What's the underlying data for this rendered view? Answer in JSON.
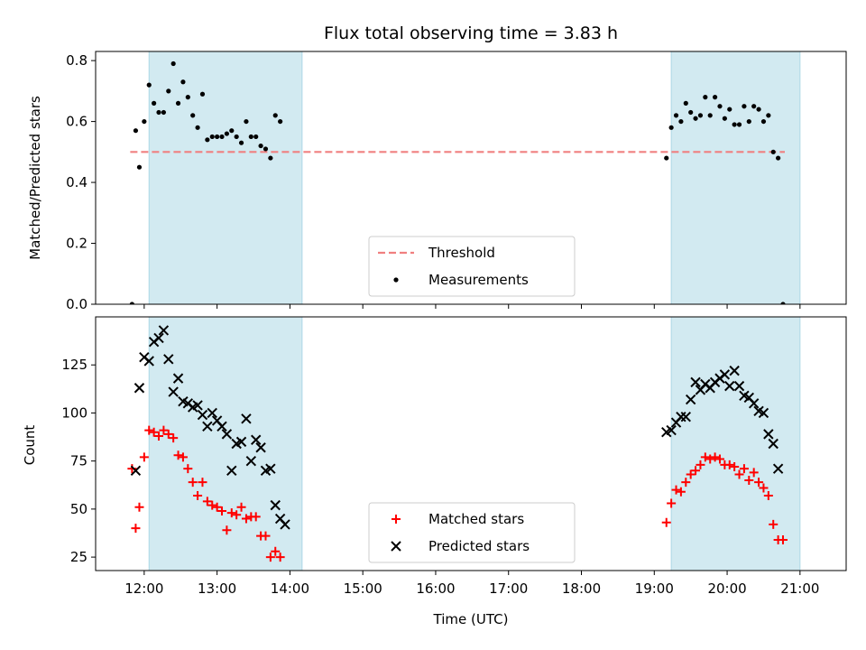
{
  "chart_data": [
    {
      "type": "scatter",
      "title": "Flux total observing time = 3.83 h",
      "ylabel": "Matched/Predicted stars",
      "xlim": [
        "11:20",
        "21:38"
      ],
      "ylim": [
        0,
        0.83
      ],
      "yticks": [
        "0.0",
        "0.2",
        "0.4",
        "0.6",
        "0.8"
      ],
      "ytick_values": [
        0,
        0.2,
        0.4,
        0.6,
        0.8
      ],
      "shaded_intervals": [
        [
          "12:04",
          "14:10"
        ],
        [
          "19:14",
          "21:00"
        ]
      ],
      "shade_color": "#add8e6",
      "threshold": {
        "name": "Threshold",
        "value": 0.5,
        "color": "#f08080",
        "style": "dashed"
      },
      "legend": {
        "location": "lower-center",
        "entries": [
          "Threshold",
          "Measurements"
        ]
      },
      "series": [
        {
          "name": "Measurements",
          "color": "#000000",
          "marker": "dot",
          "points": [
            [
              "11:50",
              0.0
            ],
            [
              "11:53",
              0.57
            ],
            [
              "11:56",
              0.45
            ],
            [
              "12:00",
              0.6
            ],
            [
              "12:04",
              0.72
            ],
            [
              "12:08",
              0.66
            ],
            [
              "12:12",
              0.63
            ],
            [
              "12:16",
              0.63
            ],
            [
              "12:20",
              0.7
            ],
            [
              "12:24",
              0.79
            ],
            [
              "12:28",
              0.66
            ],
            [
              "12:32",
              0.73
            ],
            [
              "12:36",
              0.68
            ],
            [
              "12:40",
              0.62
            ],
            [
              "12:44",
              0.58
            ],
            [
              "12:48",
              0.69
            ],
            [
              "12:52",
              0.54
            ],
            [
              "12:56",
              0.55
            ],
            [
              "13:00",
              0.55
            ],
            [
              "13:04",
              0.55
            ],
            [
              "13:08",
              0.56
            ],
            [
              "13:12",
              0.57
            ],
            [
              "13:16",
              0.55
            ],
            [
              "13:20",
              0.53
            ],
            [
              "13:24",
              0.6
            ],
            [
              "13:28",
              0.55
            ],
            [
              "13:32",
              0.55
            ],
            [
              "13:36",
              0.52
            ],
            [
              "13:40",
              0.51
            ],
            [
              "13:44",
              0.48
            ],
            [
              "13:48",
              0.62
            ],
            [
              "13:52",
              0.6
            ],
            [
              "19:10",
              0.48
            ],
            [
              "19:14",
              0.58
            ],
            [
              "19:18",
              0.62
            ],
            [
              "19:22",
              0.6
            ],
            [
              "19:26",
              0.66
            ],
            [
              "19:30",
              0.63
            ],
            [
              "19:34",
              0.61
            ],
            [
              "19:38",
              0.62
            ],
            [
              "19:42",
              0.68
            ],
            [
              "19:46",
              0.62
            ],
            [
              "19:50",
              0.68
            ],
            [
              "19:54",
              0.65
            ],
            [
              "19:58",
              0.61
            ],
            [
              "20:02",
              0.64
            ],
            [
              "20:06",
              0.59
            ],
            [
              "20:10",
              0.59
            ],
            [
              "20:14",
              0.65
            ],
            [
              "20:18",
              0.6
            ],
            [
              "20:22",
              0.65
            ],
            [
              "20:26",
              0.64
            ],
            [
              "20:30",
              0.6
            ],
            [
              "20:34",
              0.62
            ],
            [
              "20:38",
              0.5
            ],
            [
              "20:42",
              0.48
            ],
            [
              "20:46",
              0.0
            ]
          ]
        }
      ]
    },
    {
      "type": "scatter",
      "xlabel": "Time (UTC)",
      "ylabel": "Count",
      "xlim": [
        "11:20",
        "21:38"
      ],
      "ylim": [
        18,
        150
      ],
      "xticks": [
        "12:00",
        "13:00",
        "14:00",
        "15:00",
        "16:00",
        "17:00",
        "18:00",
        "19:00",
        "20:00",
        "21:00"
      ],
      "yticks": [
        "25",
        "50",
        "75",
        "100",
        "125"
      ],
      "ytick_values": [
        25,
        50,
        75,
        100,
        125
      ],
      "shaded_intervals": [
        [
          "12:04",
          "14:10"
        ],
        [
          "19:14",
          "21:00"
        ]
      ],
      "shade_color": "#add8e6",
      "legend": {
        "location": "lower-center",
        "entries": [
          "Matched stars",
          "Predicted stars"
        ]
      },
      "series": [
        {
          "name": "Matched stars",
          "color": "#ff0000",
          "marker": "plus",
          "points": [
            [
              "11:50",
              71
            ],
            [
              "11:53",
              40
            ],
            [
              "11:56",
              51
            ],
            [
              "12:00",
              77
            ],
            [
              "12:04",
              91
            ],
            [
              "12:08",
              90
            ],
            [
              "12:12",
              88
            ],
            [
              "12:16",
              91
            ],
            [
              "12:20",
              89
            ],
            [
              "12:24",
              87
            ],
            [
              "12:28",
              78
            ],
            [
              "12:32",
              77
            ],
            [
              "12:36",
              71
            ],
            [
              "12:40",
              64
            ],
            [
              "12:44",
              57
            ],
            [
              "12:48",
              64
            ],
            [
              "12:52",
              54
            ],
            [
              "12:56",
              52
            ],
            [
              "13:00",
              51
            ],
            [
              "13:04",
              49
            ],
            [
              "13:08",
              39
            ],
            [
              "13:12",
              48
            ],
            [
              "13:16",
              47
            ],
            [
              "13:20",
              51
            ],
            [
              "13:24",
              45
            ],
            [
              "13:28",
              46
            ],
            [
              "13:32",
              46
            ],
            [
              "13:36",
              36
            ],
            [
              "13:40",
              36
            ],
            [
              "13:44",
              25
            ],
            [
              "13:48",
              28
            ],
            [
              "13:52",
              25
            ],
            [
              "19:10",
              43
            ],
            [
              "19:14",
              53
            ],
            [
              "19:18",
              60
            ],
            [
              "19:22",
              59
            ],
            [
              "19:26",
              64
            ],
            [
              "19:30",
              68
            ],
            [
              "19:34",
              70
            ],
            [
              "19:38",
              73
            ],
            [
              "19:42",
              77
            ],
            [
              "19:46",
              76
            ],
            [
              "19:50",
              77
            ],
            [
              "19:54",
              76
            ],
            [
              "19:58",
              73
            ],
            [
              "20:02",
              73
            ],
            [
              "20:06",
              72
            ],
            [
              "20:10",
              68
            ],
            [
              "20:14",
              71
            ],
            [
              "20:18",
              65
            ],
            [
              "20:22",
              69
            ],
            [
              "20:26",
              64
            ],
            [
              "20:30",
              61
            ],
            [
              "20:34",
              57
            ],
            [
              "20:38",
              42
            ],
            [
              "20:42",
              34
            ],
            [
              "20:46",
              34
            ]
          ]
        },
        {
          "name": "Predicted stars",
          "color": "#000000",
          "marker": "x",
          "points": [
            [
              "11:53",
              70
            ],
            [
              "11:56",
              113
            ],
            [
              "12:00",
              129
            ],
            [
              "12:04",
              127
            ],
            [
              "12:08",
              137
            ],
            [
              "12:12",
              139
            ],
            [
              "12:16",
              143
            ],
            [
              "12:20",
              128
            ],
            [
              "12:24",
              111
            ],
            [
              "12:28",
              118
            ],
            [
              "12:32",
              106
            ],
            [
              "12:36",
              105
            ],
            [
              "12:40",
              103
            ],
            [
              "12:44",
              104
            ],
            [
              "12:48",
              99
            ],
            [
              "12:52",
              93
            ],
            [
              "12:56",
              100
            ],
            [
              "13:00",
              96
            ],
            [
              "13:04",
              93
            ],
            [
              "13:08",
              89
            ],
            [
              "13:12",
              70
            ],
            [
              "13:16",
              84
            ],
            [
              "13:20",
              85
            ],
            [
              "13:24",
              97
            ],
            [
              "13:28",
              75
            ],
            [
              "13:32",
              86
            ],
            [
              "13:36",
              82
            ],
            [
              "13:40",
              70
            ],
            [
              "13:44",
              71
            ],
            [
              "13:48",
              52
            ],
            [
              "13:52",
              45
            ],
            [
              "13:56",
              42
            ],
            [
              "19:10",
              90
            ],
            [
              "19:14",
              91
            ],
            [
              "19:18",
              95
            ],
            [
              "19:22",
              98
            ],
            [
              "19:26",
              98
            ],
            [
              "19:30",
              107
            ],
            [
              "19:34",
              116
            ],
            [
              "19:38",
              112
            ],
            [
              "19:42",
              115
            ],
            [
              "19:46",
              113
            ],
            [
              "19:50",
              116
            ],
            [
              "19:54",
              118
            ],
            [
              "19:58",
              120
            ],
            [
              "20:02",
              114
            ],
            [
              "20:06",
              122
            ],
            [
              "20:10",
              114
            ],
            [
              "20:14",
              109
            ],
            [
              "20:18",
              108
            ],
            [
              "20:22",
              105
            ],
            [
              "20:26",
              101
            ],
            [
              "20:30",
              100
            ],
            [
              "20:34",
              89
            ],
            [
              "20:38",
              84
            ],
            [
              "20:42",
              71
            ]
          ]
        }
      ]
    }
  ]
}
